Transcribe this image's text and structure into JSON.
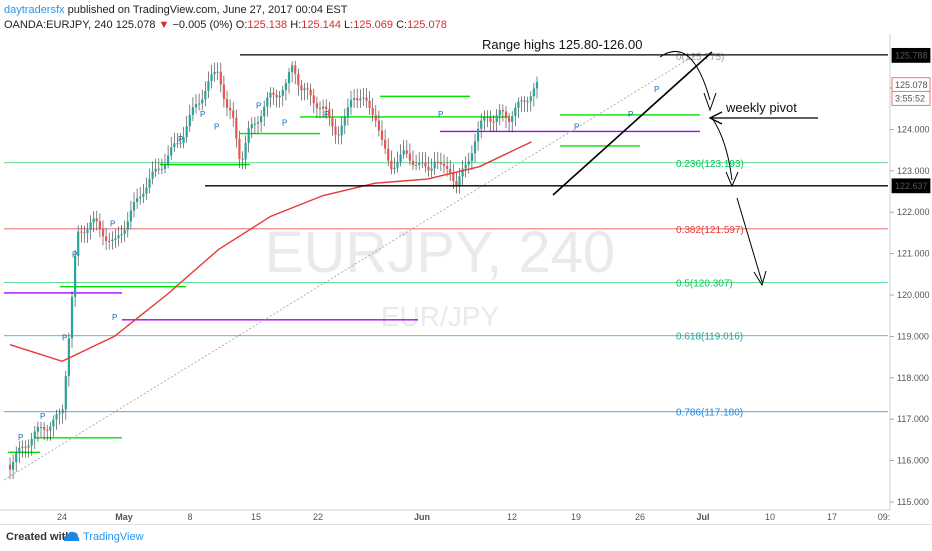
{
  "header": {
    "user": "daytradersfx",
    "published_text": " published on TradingView.com, June 27, 2017 00:04 EST",
    "symbol": "OANDA:EURJPY, 240",
    "price": "125.078",
    "change_arrow": "▼",
    "change": "−0.005 (0%)",
    "o_label": "O:",
    "o_value": "125.138",
    "h_label": "H:",
    "h_value": "125.144",
    "l_label": "L:",
    "l_value": "125.069",
    "c_label": "C:",
    "c_value": "125.078"
  },
  "footer": {
    "created_with": "Created with",
    "brand": "TradingView"
  },
  "colors": {
    "up": "#26a69a",
    "down": "#ef5350",
    "ma": "#e53935",
    "pivot_green": "#00e000",
    "pivot_purple": "#aa00ff",
    "pivot_blue": "#1565c0",
    "fib_236": "#00c853",
    "fib_382": "#e53935",
    "fib_5": "#00c853",
    "fib_618": "#26a69a",
    "fib_786": "#1e88e5"
  },
  "chart_data": {
    "type": "line",
    "title": "",
    "watermark": "EURJPY, 240",
    "watermark_sub": "EUR/JPY",
    "xlabel": "",
    "ylabel": "",
    "ylim": [
      115.0,
      126.5
    ],
    "grid": false,
    "x_ticks": [
      "24",
      "May",
      "8",
      "15",
      "22",
      "Jun",
      "12",
      "19",
      "26",
      "Jul",
      "10",
      "17",
      "09:"
    ],
    "y_ticks": [
      "125.000",
      "124.000",
      "123.000",
      "122.000",
      "121.000",
      "120.000",
      "119.000",
      "118.000",
      "117.000",
      "116.000",
      "115.000"
    ],
    "price_labels": [
      {
        "label": "125.788",
        "value": 125.788,
        "color": "#000000"
      },
      {
        "label": "125.078",
        "value": 125.078,
        "color": "#ef5350"
      },
      {
        "label": "3:55:52",
        "value": 124.75,
        "color": "#ef5350"
      },
      {
        "label": "122.637",
        "value": 122.637,
        "color": "#000000"
      }
    ],
    "series": [
      {
        "name": "EURJPY",
        "x": [
          "Apr 17",
          "Apr 20",
          "Apr 24",
          "Apr 26",
          "Apr 28",
          "May 1",
          "May 3",
          "May 5",
          "May 8",
          "May 10",
          "May 12",
          "May 15",
          "May 16",
          "May 17",
          "May 18",
          "May 19",
          "May 22",
          "May 24",
          "May 25",
          "May 26",
          "May 29",
          "May 31",
          "Jun 1",
          "Jun 2",
          "Jun 5",
          "Jun 6",
          "Jun 7",
          "Jun 9",
          "Jun 12",
          "Jun 13",
          "Jun 14",
          "Jun 15",
          "Jun 16",
          "Jun 19",
          "Jun 20",
          "Jun 21",
          "Jun 22",
          "Jun 23",
          "Jun 26",
          "Jun 27"
        ],
        "values": [
          115.9,
          116.6,
          117.1,
          121.4,
          121.8,
          121.2,
          121.9,
          122.6,
          123.3,
          123.8,
          124.6,
          125.5,
          124.5,
          124.2,
          123.2,
          123.9,
          124.8,
          125.0,
          125.6,
          125.0,
          124.5,
          123.9,
          124.2,
          124.9,
          124.4,
          123.6,
          123.1,
          123.4,
          123.0,
          123.3,
          123.0,
          123.1,
          122.6,
          124.0,
          124.4,
          124.2,
          124.4,
          124.3,
          124.9,
          125.078
        ]
      },
      {
        "name": "Moving average",
        "x": [
          "Apr 17",
          "Apr 24",
          "May 1",
          "May 8",
          "May 15",
          "May 22",
          "May 29",
          "Jun 5",
          "Jun 12",
          "Jun 19",
          "Jun 26"
        ],
        "values": [
          118.8,
          118.4,
          119.0,
          120.0,
          121.1,
          121.9,
          122.4,
          122.7,
          122.8,
          123.1,
          123.7
        ]
      }
    ],
    "horizontal_lines": [
      {
        "label": "Range highs 125.80-126.00",
        "value": 125.8
      },
      {
        "label": "",
        "value": 122.637
      }
    ],
    "fibonacci": [
      {
        "label": "0(125.775)",
        "value": 125.775
      },
      {
        "label": "0.236(123.193)",
        "value": 123.193
      },
      {
        "label": "0.382(121.597)",
        "value": 121.597
      },
      {
        "label": "0.5(120.307)",
        "value": 120.307
      },
      {
        "label": "0.618(119.016)",
        "value": 119.016
      },
      {
        "label": "0.786(117.180)",
        "value": 117.18
      }
    ],
    "annotations": [
      {
        "label": "weekly pivot",
        "value": 124.35
      }
    ]
  }
}
